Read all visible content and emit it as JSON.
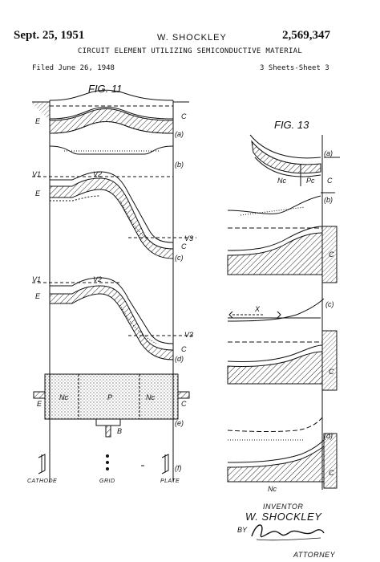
{
  "header": {
    "date": "Sept. 25, 1951",
    "inventor": "W. SHOCKLEY",
    "patent_number": "2,569,347",
    "title": "CIRCUIT ELEMENT UTILIZING SEMICONDUCTIVE MATERIAL",
    "filed": "Filed June 26, 1948",
    "sheets": "3 Sheets-Sheet 3"
  },
  "fig11": {
    "label": "FIG. 11",
    "a": {
      "left": "E",
      "right": "C",
      "tag": "(a)"
    },
    "b": {
      "tag": "(b)"
    },
    "c": {
      "v1": "V1",
      "v2": "V2",
      "v3": "V3",
      "left": "E",
      "right": "C",
      "tag": "(c)"
    },
    "d": {
      "v1": "V1",
      "v2": "V2",
      "v3": "V3",
      "left": "E",
      "right": "C",
      "tag": "(d)"
    },
    "e": {
      "nc_left": "Nc",
      "p": "P",
      "nc_right": "Nc",
      "left": "E",
      "right": "C",
      "base": "B",
      "tag": "(e)"
    },
    "f": {
      "tag": "(f)",
      "cathode": "CATHODE",
      "grid": "GRID",
      "plate": "PLATE"
    }
  },
  "fig13": {
    "label": "FIG. 13",
    "a": {
      "nc": "Nc",
      "pc": "Pc",
      "c": "C",
      "tag": "(a)"
    },
    "b": {
      "tag": "(b)"
    },
    "c1": {
      "c": "C"
    },
    "c": {
      "x": "X",
      "tag": "(c)"
    },
    "c2": {
      "c": "C"
    },
    "d": {
      "tag": "(d)",
      "c": "C",
      "nc": "Nc"
    }
  },
  "signature": {
    "inventor_caption": "INVENTOR",
    "inventor_name": "W. SHOCKLEY",
    "by": "BY",
    "attorney_caption": "ATTORNEY"
  }
}
